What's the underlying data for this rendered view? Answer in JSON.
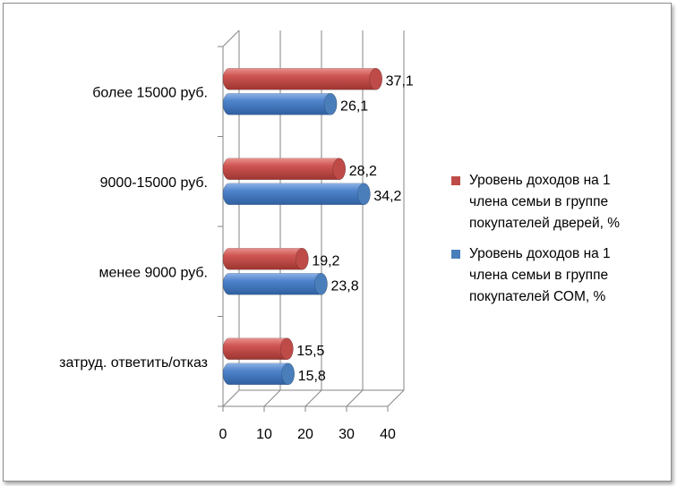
{
  "chart_data": {
    "type": "bar",
    "orientation": "horizontal",
    "style": "3d-cylinder",
    "categories": [
      "затруд. ответить/отказ",
      "менее 9000 руб.",
      "9000-15000 руб.",
      "более 15000 руб."
    ],
    "series": [
      {
        "name": "Уровень доходов на 1 члена семьи в группе покупателей СОМ, %",
        "color": "#4a7ebb",
        "values": [
          15.8,
          23.8,
          34.2,
          26.1
        ],
        "labels": [
          "15,8",
          "23,8",
          "34,2",
          "26,1"
        ]
      },
      {
        "name": "Уровень доходов на 1 члена семьи в группе покупателей дверей, %",
        "color": "#be4b48",
        "values": [
          15.5,
          19.2,
          28.2,
          37.1
        ],
        "labels": [
          "15,5",
          "19,2",
          "28,2",
          "37,1"
        ]
      }
    ],
    "xlim": [
      0,
      40
    ],
    "xticks": [
      "0",
      "10",
      "20",
      "30",
      "40"
    ],
    "grid": true,
    "legend_position": "right",
    "legend_lines": [
      [
        "Уровень доходов на 1",
        "члена семьи в группе",
        "покупателей дверей, %"
      ],
      [
        "Уровень доходов на 1",
        "члена семьи в группе",
        "покупателей СОМ, %"
      ]
    ],
    "legend_colors": [
      "#be4b48",
      "#4a7ebb"
    ]
  }
}
